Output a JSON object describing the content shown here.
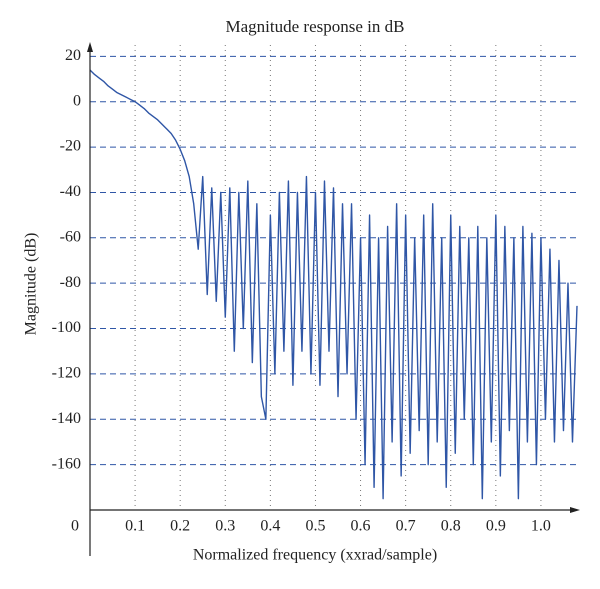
{
  "chart_data": {
    "type": "line",
    "title": "Magnitude response in dB",
    "x_label": "Normalized frequency (xxrad/sample)",
    "y_label": "Magnitude (dB)",
    "x": [
      0,
      0.01,
      0.02,
      0.03,
      0.04,
      0.05,
      0.06,
      0.07,
      0.08,
      0.09,
      0.1,
      0.11,
      0.12,
      0.13,
      0.14,
      0.15,
      0.16,
      0.17,
      0.18,
      0.19,
      0.2,
      0.21,
      0.22,
      0.23,
      0.24,
      0.25,
      0.26,
      0.27,
      0.28,
      0.29,
      0.3,
      0.31,
      0.32,
      0.33,
      0.34,
      0.35,
      0.36,
      0.37,
      0.38,
      0.39,
      0.4,
      0.41,
      0.42,
      0.43,
      0.44,
      0.45,
      0.46,
      0.47,
      0.48,
      0.49,
      0.5,
      0.51,
      0.52,
      0.53,
      0.54,
      0.55,
      0.56,
      0.57,
      0.58,
      0.59,
      0.6,
      0.61,
      0.62,
      0.63,
      0.64,
      0.65,
      0.66,
      0.67,
      0.68,
      0.69,
      0.7,
      0.71,
      0.72,
      0.73,
      0.74,
      0.75,
      0.76,
      0.77,
      0.78,
      0.79,
      0.8,
      0.81,
      0.82,
      0.83,
      0.84,
      0.85,
      0.86,
      0.87,
      0.88,
      0.89,
      0.9,
      0.91,
      0.92,
      0.93,
      0.94,
      0.95,
      0.96,
      0.97,
      0.98,
      0.99,
      1.0,
      1.01,
      1.02,
      1.03,
      1.04,
      1.05,
      1.06,
      1.07,
      1.08
    ],
    "series": [
      {
        "name": "Magnitude",
        "color": "#2f56a6",
        "values": [
          14,
          12,
          10.5,
          9,
          7,
          5.5,
          4,
          3,
          2,
          1,
          0,
          -1.5,
          -3,
          -5,
          -6.5,
          -8,
          -10,
          -12,
          -14,
          -17,
          -21,
          -26,
          -33,
          -45,
          -65,
          -33,
          -85,
          -38,
          -88,
          -40,
          -95,
          -38,
          -110,
          -40,
          -100,
          -35,
          -115,
          -45,
          -130,
          -140,
          -50,
          -120,
          -40,
          -110,
          -35,
          -125,
          -40,
          -110,
          -33,
          -120,
          -40,
          -125,
          -35,
          -110,
          -38,
          -130,
          -45,
          -120,
          -45,
          -140,
          -60,
          -160,
          -50,
          -170,
          -60,
          -175,
          -55,
          -150,
          -45,
          -165,
          -50,
          -155,
          -60,
          -145,
          -50,
          -160,
          -45,
          -150,
          -60,
          -170,
          -50,
          -155,
          -55,
          -140,
          -60,
          -160,
          -55,
          -175,
          -60,
          -150,
          -50,
          -165,
          -55,
          -145,
          -60,
          -175,
          -55,
          -150,
          -58,
          -160,
          -60,
          -140,
          -65,
          -150,
          -70,
          -145,
          -80,
          -150,
          -90
        ]
      }
    ],
    "xlim": [
      0,
      1.08
    ],
    "ylim": [
      -180,
      25
    ],
    "xticks": [
      0,
      0.1,
      0.2,
      0.3,
      0.4,
      0.5,
      0.6,
      0.7,
      0.8,
      0.9,
      {
        "value": 1,
        "label": "1.0"
      }
    ],
    "yticks": [
      -160,
      -140,
      -120,
      -100,
      -80,
      -60,
      -40,
      -20,
      0,
      20
    ],
    "grid": true
  }
}
